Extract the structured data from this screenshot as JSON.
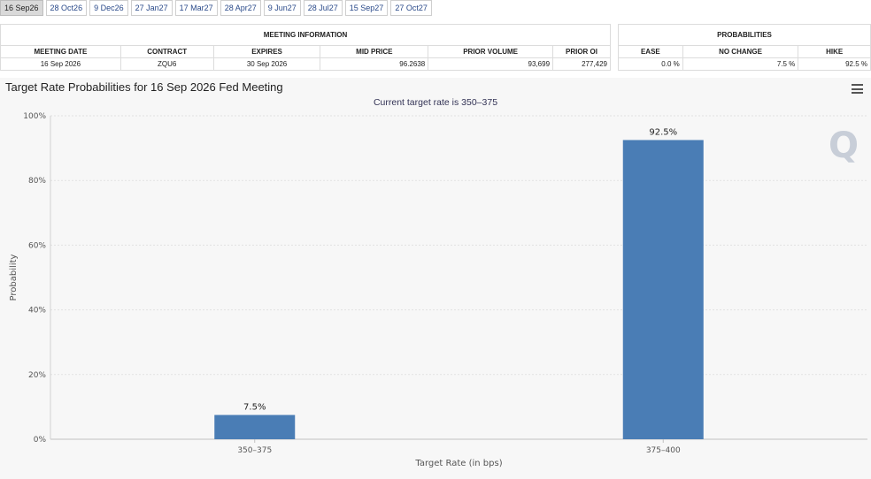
{
  "tabs": [
    "16 Sep26",
    "28 Oct26",
    "9 Dec26",
    "27 Jan27",
    "17 Mar27",
    "28 Apr27",
    "9 Jun27",
    "28 Jul27",
    "15 Sep27",
    "27 Oct27"
  ],
  "active_tab": 0,
  "meeting_info": {
    "group_label": "MEETING INFORMATION",
    "headers": [
      "MEETING DATE",
      "CONTRACT",
      "EXPIRES",
      "MID PRICE",
      "PRIOR VOLUME",
      "PRIOR OI"
    ],
    "row": [
      "16 Sep 2026",
      "ZQU6",
      "30 Sep 2026",
      "96.2638",
      "93,699",
      "277,429"
    ]
  },
  "probabilities": {
    "group_label": "PROBABILITIES",
    "headers": [
      "EASE",
      "NO CHANGE",
      "HIKE"
    ],
    "row": [
      "0.0 %",
      "7.5 %",
      "92.5 %"
    ]
  },
  "chart_header": {
    "title": "Target Rate Probabilities for 16 Sep 2026 Fed Meeting",
    "subtitle": "Current target rate is 350–375",
    "menu_icon": "hamburger-menu-icon",
    "watermark": "Q"
  },
  "chart_data": {
    "type": "bar",
    "categories": [
      "350–375",
      "375–400"
    ],
    "values": [
      7.5,
      92.5
    ],
    "data_labels": [
      "7.5%",
      "92.5%"
    ],
    "xlabel": "Target Rate (in bps)",
    "ylabel": "Probability",
    "ylim": [
      0,
      100
    ],
    "yticks": [
      "0%",
      "20%",
      "40%",
      "60%",
      "80%",
      "100%"
    ],
    "bar_color": "#4a7db5",
    "grid": true
  }
}
